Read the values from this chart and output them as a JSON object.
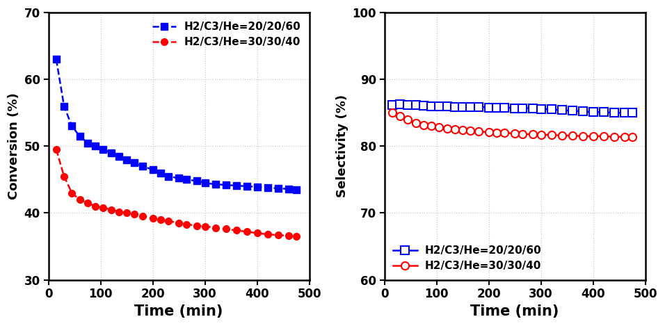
{
  "conv_blue_time": [
    15,
    30,
    45,
    60,
    75,
    90,
    105,
    120,
    135,
    150,
    165,
    180,
    200,
    215,
    230,
    250,
    265,
    285,
    300,
    320,
    340,
    360,
    380,
    400,
    420,
    440,
    460,
    475
  ],
  "conv_blue_vals": [
    63,
    56,
    53,
    51.5,
    50.5,
    50,
    49.5,
    49,
    48.5,
    48,
    47.5,
    47,
    46.5,
    46,
    45.5,
    45.2,
    45,
    44.8,
    44.5,
    44.3,
    44.2,
    44.1,
    44.0,
    43.9,
    43.8,
    43.7,
    43.6,
    43.5
  ],
  "conv_red_time": [
    15,
    30,
    45,
    60,
    75,
    90,
    105,
    120,
    135,
    150,
    165,
    180,
    200,
    215,
    230,
    250,
    265,
    285,
    300,
    320,
    340,
    360,
    380,
    400,
    420,
    440,
    460,
    475
  ],
  "conv_red_vals": [
    49.5,
    45.5,
    43,
    42,
    41.5,
    41,
    40.8,
    40.5,
    40.2,
    40,
    39.8,
    39.5,
    39.2,
    39,
    38.8,
    38.5,
    38.3,
    38.1,
    38.0,
    37.8,
    37.6,
    37.4,
    37.2,
    37.0,
    36.8,
    36.7,
    36.6,
    36.5
  ],
  "sel_blue_time": [
    15,
    30,
    45,
    60,
    75,
    90,
    105,
    120,
    135,
    150,
    165,
    180,
    200,
    215,
    230,
    250,
    265,
    285,
    300,
    320,
    340,
    360,
    380,
    400,
    420,
    440,
    460,
    475
  ],
  "sel_blue_vals": [
    86.2,
    86.3,
    86.2,
    86.2,
    86.1,
    86.0,
    86.0,
    86.0,
    85.9,
    85.9,
    85.9,
    85.9,
    85.8,
    85.8,
    85.8,
    85.7,
    85.7,
    85.7,
    85.6,
    85.5,
    85.4,
    85.3,
    85.2,
    85.1,
    85.1,
    85.0,
    85.0,
    85.0
  ],
  "sel_red_time": [
    15,
    30,
    45,
    60,
    75,
    90,
    105,
    120,
    135,
    150,
    165,
    180,
    200,
    215,
    230,
    250,
    265,
    285,
    300,
    320,
    340,
    360,
    380,
    400,
    420,
    440,
    460,
    475
  ],
  "sel_red_vals": [
    85.0,
    84.5,
    84.0,
    83.5,
    83.2,
    83.0,
    82.8,
    82.6,
    82.5,
    82.4,
    82.3,
    82.2,
    82.1,
    82.0,
    82.0,
    81.9,
    81.8,
    81.8,
    81.7,
    81.7,
    81.6,
    81.6,
    81.5,
    81.5,
    81.5,
    81.4,
    81.4,
    81.4
  ],
  "blue_color": "#0000FF",
  "red_color": "#FF0000",
  "label_blue": "H2/C3/He=20/20/60",
  "label_red": "H2/C3/He=30/30/40",
  "conv_ylabel": "Conversion (%)",
  "sel_ylabel": "Selectivity (%)",
  "xlabel": "Time (min)",
  "conv_ylim": [
    30,
    70
  ],
  "conv_yticks": [
    30,
    40,
    50,
    60,
    70
  ],
  "sel_ylim": [
    60,
    100
  ],
  "sel_yticks": [
    60,
    70,
    80,
    90,
    100
  ],
  "xlim": [
    0,
    490
  ],
  "xticks": [
    0,
    100,
    200,
    300,
    400,
    500
  ],
  "grid_color": "#c8c8c8",
  "background_color": "#ffffff",
  "marker_size_filled": 7,
  "marker_size_open": 8,
  "line_width": 1.8
}
